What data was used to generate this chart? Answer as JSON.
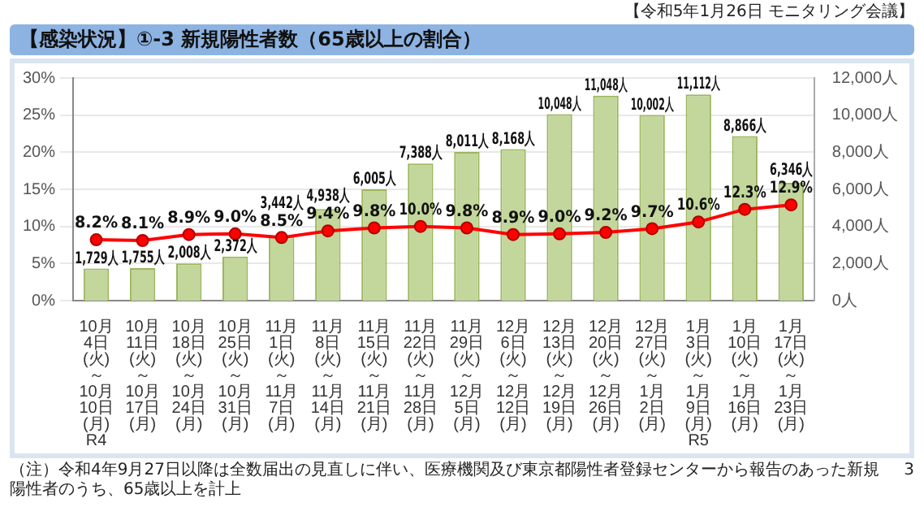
{
  "chart_data": {
    "type": "bar",
    "title": "【感染状況】①-3 新規陽性者数（65歳以上の割合）",
    "annotations": [
      "【令和5年1月26日 モニタリング会議】",
      "（注）令和4年9月27日以降は全数届出の見直しに伴い、医療機関及び東京都陽性者登録センターから報告のあった新規陽性者のうち、65歳以上を計上",
      "3"
    ],
    "categories": [
      "10月4日\n(火)\n～\n10月10日\n(月)\nR4",
      "10月11日\n(火)\n～\n10月17日\n(月)",
      "10月18日\n(火)\n～\n10月24日\n(月)",
      "10月25日\n(火)\n～\n10月31日\n(月)",
      "11月1日\n(火)\n～\n11月7日\n(月)",
      "11月8日\n(火)\n～\n11月14日\n(月)",
      "11月15日\n(火)\n～\n11月21日\n(月)",
      "11月22日\n(火)\n～\n11月28日\n(月)",
      "11月29日\n(火)\n～\n12月5日\n(月)",
      "12月6日\n(火)\n～\n12月12日\n(月)",
      "12月13日\n(火)\n～\n12月19日\n(月)",
      "12月20日\n(火)\n～\n12月26日\n(月)",
      "12月27日\n(火)\n～\n1月2日\n(月)",
      "1月3日\n(火)\n～\n1月9日\n(月)\nR5",
      "1月10日\n(火)\n～\n1月16日\n(月)",
      "1月17日\n(火)\n～\n1月23日\n(月)"
    ],
    "series": [
      {
        "axis": "y2",
        "color": "#c3d69b",
        "values": [
          1729,
          1755,
          2008,
          2372,
          3442,
          4938,
          6005,
          7388,
          8011,
          8168,
          10048,
          11048,
          10002,
          11112,
          8866,
          6346
        ],
        "value_labels": [
          "1,729人",
          "1,755人",
          "2,008人",
          "2,372人",
          "3,442人",
          "4,938人",
          "6,005人",
          "7,388人",
          "8,011人",
          "8,168人",
          "10,048人",
          "11,048人",
          "10,002人",
          "11,112人",
          "8,866人",
          "6,346人"
        ]
      },
      {
        "type": "line",
        "axis": "y",
        "color": "#ff0000",
        "values": [
          8.2,
          8.1,
          8.9,
          9.0,
          8.5,
          9.4,
          9.8,
          10.0,
          9.8,
          8.9,
          9.0,
          9.2,
          9.7,
          10.6,
          12.3,
          12.9
        ],
        "value_labels": [
          "8.2%",
          "8.1%",
          "8.9%",
          "9.0%",
          "8.5%",
          "9.4%",
          "9.8%",
          "10.0%",
          "9.8%",
          "8.9%",
          "9.0%",
          "9.2%",
          "9.7%",
          "10.6%",
          "12.3%",
          "12.9%"
        ]
      }
    ],
    "ylim": [
      0,
      30
    ],
    "yticks": [
      {
        "value": 0,
        "label": "0%"
      },
      {
        "value": 5,
        "label": "5%"
      },
      {
        "value": 10,
        "label": "10%"
      },
      {
        "value": 15,
        "label": "15%"
      },
      {
        "value": 20,
        "label": "20%"
      },
      {
        "value": 25,
        "label": "25%"
      },
      {
        "value": 30,
        "label": "30%"
      }
    ],
    "y2lim": [
      0,
      12000
    ],
    "y2ticks": [
      {
        "value": 0,
        "label": "0人"
      },
      {
        "value": 2000,
        "label": "2,000人"
      },
      {
        "value": 4000,
        "label": "4,000人"
      },
      {
        "value": 6000,
        "label": "6,000人"
      },
      {
        "value": 8000,
        "label": "8,000人"
      },
      {
        "value": 10000,
        "label": "10,000人"
      },
      {
        "value": 12000,
        "label": "12,000人"
      }
    ],
    "grid": "y",
    "marker": "circle"
  }
}
